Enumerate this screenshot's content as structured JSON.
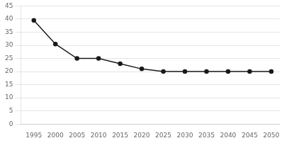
{
  "chart_data": {
    "type": "line",
    "x": [
      1995,
      2000,
      2005,
      2010,
      2015,
      2020,
      2025,
      2030,
      2035,
      2040,
      2045,
      2050
    ],
    "values": [
      39.5,
      30.5,
      25.0,
      25.0,
      23.0,
      21.0,
      20.0,
      20.0,
      20.0,
      20.0,
      20.0,
      20.0
    ],
    "color": "#1a1a1a",
    "marker": "circle",
    "xlim": [
      1992,
      2052
    ],
    "xticks": [
      1995,
      2000,
      2005,
      2010,
      2015,
      2020,
      2025,
      2030,
      2035,
      2040,
      2045,
      2050
    ],
    "ylim": [
      0,
      45
    ],
    "yticks": [
      0,
      5,
      10,
      15,
      20,
      25,
      30,
      35,
      40,
      45
    ],
    "grid": "y"
  }
}
